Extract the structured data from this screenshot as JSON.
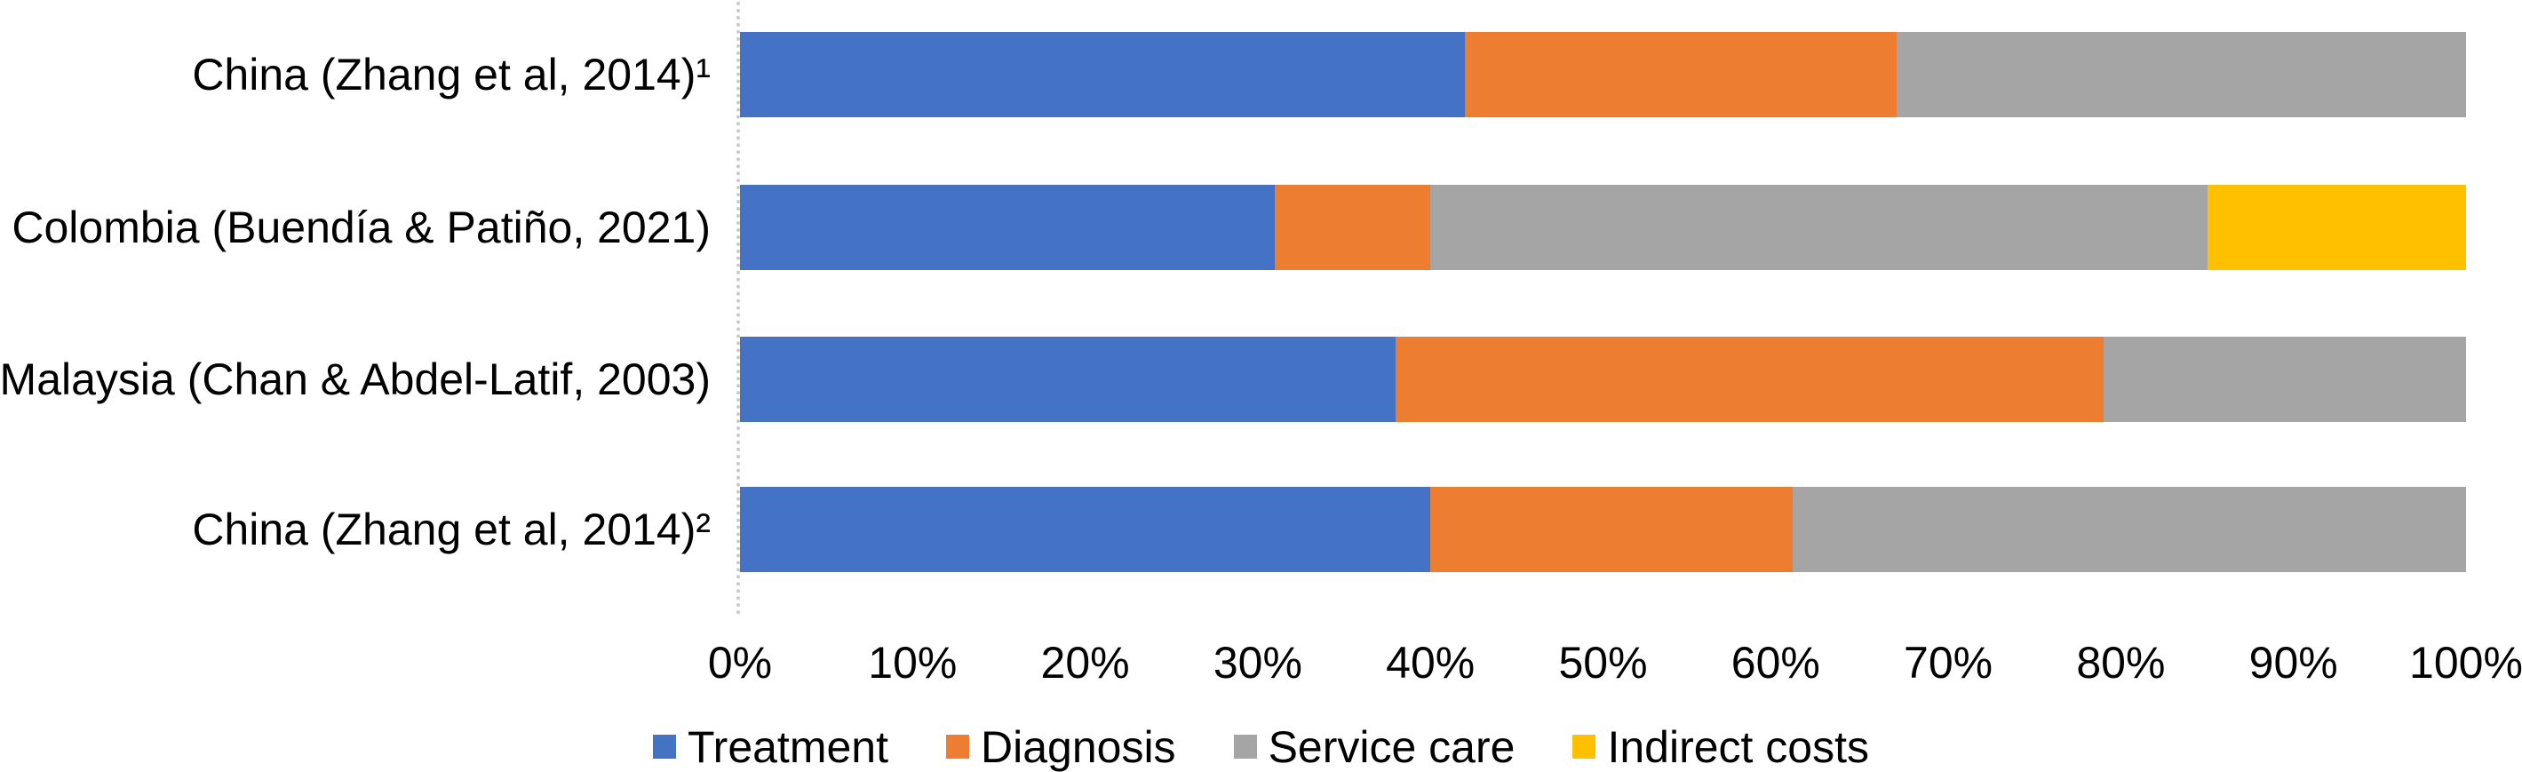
{
  "figure": {
    "background_color": "#ffffff",
    "text_color": "#000000",
    "axis_line_color": "#c9c9c9"
  },
  "chart_data": {
    "type": "bar",
    "stacked": true,
    "orientation": "horizontal",
    "unit": "percent",
    "categories": [
      "China (Zhang et al, 2014)¹",
      "Colombia (Buendía & Patiño, 2021)",
      "Malaysia (Chan & Abdel-Latif, 2003)",
      "China (Zhang et al, 2014)²"
    ],
    "series": [
      {
        "name": "Treatment",
        "color": "#4472C4",
        "values": [
          42,
          31,
          38,
          40
        ]
      },
      {
        "name": "Diagnosis",
        "color": "#ED7D31",
        "values": [
          25,
          9,
          41,
          21
        ]
      },
      {
        "name": "Service care",
        "color": "#A5A5A5",
        "values": [
          33,
          45,
          21,
          39
        ]
      },
      {
        "name": "Indirect costs",
        "color": "#FFC000",
        "values": [
          0,
          15,
          0,
          0
        ]
      }
    ],
    "x_axis": {
      "min": 0,
      "max": 100,
      "tick_step": 10,
      "tick_labels": [
        "0%",
        "10%",
        "20%",
        "30%",
        "40%",
        "50%",
        "60%",
        "70%",
        "80%",
        "90%",
        "100%"
      ]
    },
    "y_axis": {
      "label": ""
    },
    "title": "",
    "grid": false,
    "legend_position": "bottom"
  }
}
